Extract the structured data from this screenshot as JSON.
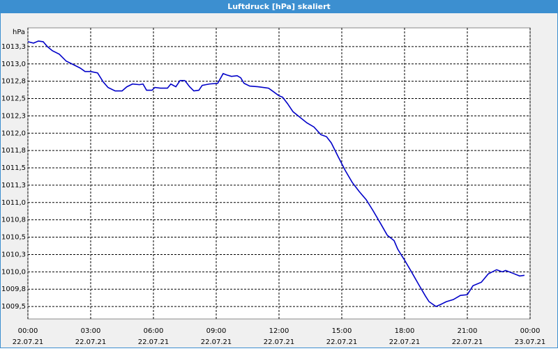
{
  "chart_data": {
    "type": "line",
    "title": "Luftdruck [hPa] skaliert",
    "ylabel": "hPa",
    "xlim": [
      0,
      24
    ],
    "ylim": [
      1009.32,
      1013.52
    ],
    "grid": true,
    "xticks": [
      {
        "value": 0,
        "label": "00:00 22.07.21"
      },
      {
        "value": 3,
        "label": "03:00 22.07.21"
      },
      {
        "value": 6,
        "label": "06:00 22.07.21"
      },
      {
        "value": 9,
        "label": "09:00 22.07.21"
      },
      {
        "value": 12,
        "label": "12:00 22.07.21"
      },
      {
        "value": 15,
        "label": "15:00 22.07.21"
      },
      {
        "value": 18,
        "label": "18:00 22.07.21"
      },
      {
        "value": 21,
        "label": "21:00 22.07.21"
      },
      {
        "value": 24,
        "label": "00:00 23.07.21"
      }
    ],
    "yticks": [
      {
        "value": 1009.5,
        "label": "1009,5"
      },
      {
        "value": 1009.75,
        "label": "1009,8"
      },
      {
        "value": 1010.0,
        "label": "1010,0"
      },
      {
        "value": 1010.25,
        "label": "1010,3"
      },
      {
        "value": 1010.5,
        "label": "1010,5"
      },
      {
        "value": 1010.75,
        "label": "1010,8"
      },
      {
        "value": 1011.0,
        "label": "1011,0"
      },
      {
        "value": 1011.25,
        "label": "1011,3"
      },
      {
        "value": 1011.5,
        "label": "1011,5"
      },
      {
        "value": 1011.75,
        "label": "1011,8"
      },
      {
        "value": 1012.0,
        "label": "1012,0"
      },
      {
        "value": 1012.25,
        "label": "1012,3"
      },
      {
        "value": 1012.5,
        "label": "1012,5"
      },
      {
        "value": 1012.75,
        "label": "1012,8"
      },
      {
        "value": 1013.0,
        "label": "1013,0"
      },
      {
        "value": 1013.25,
        "label": "1013,3"
      }
    ],
    "series": [
      {
        "color": "#0000c8",
        "x": [
          0.0,
          0.27,
          0.5,
          0.73,
          0.93,
          1.17,
          1.5,
          1.83,
          2.17,
          2.5,
          2.73,
          3.0,
          3.33,
          3.6,
          3.83,
          4.17,
          4.5,
          4.73,
          5.0,
          5.33,
          5.5,
          5.67,
          5.93,
          6.07,
          6.33,
          6.67,
          6.83,
          7.07,
          7.27,
          7.5,
          7.73,
          7.93,
          8.17,
          8.33,
          8.67,
          9.07,
          9.33,
          9.5,
          9.73,
          10.0,
          10.17,
          10.33,
          10.6,
          11.0,
          11.5,
          11.73,
          12.0,
          12.17,
          12.4,
          12.67,
          13.0,
          13.33,
          13.67,
          14.0,
          14.27,
          14.5,
          14.83,
          15.17,
          15.5,
          15.83,
          16.17,
          16.5,
          16.83,
          17.17,
          17.5,
          17.67,
          17.83,
          18.0,
          18.33,
          18.67,
          19.0,
          19.17,
          19.5,
          19.73,
          20.0,
          20.33,
          20.67,
          21.0,
          21.27,
          21.67,
          22.0,
          22.4,
          22.67,
          22.83,
          23.17,
          23.5,
          23.73
        ],
        "values": [
          1013.32,
          1013.3,
          1013.33,
          1013.32,
          1013.25,
          1013.19,
          1013.14,
          1013.04,
          1012.99,
          1012.94,
          1012.89,
          1012.89,
          1012.87,
          1012.74,
          1012.66,
          1012.61,
          1012.61,
          1012.67,
          1012.71,
          1012.7,
          1012.71,
          1012.62,
          1012.62,
          1012.66,
          1012.65,
          1012.65,
          1012.71,
          1012.67,
          1012.76,
          1012.76,
          1012.67,
          1012.61,
          1012.62,
          1012.69,
          1012.71,
          1012.72,
          1012.86,
          1012.84,
          1012.82,
          1012.83,
          1012.8,
          1012.72,
          1012.68,
          1012.67,
          1012.65,
          1012.6,
          1012.54,
          1012.52,
          1012.43,
          1012.31,
          1012.23,
          1012.15,
          1012.09,
          1011.98,
          1011.95,
          1011.86,
          1011.66,
          1011.46,
          1011.29,
          1011.16,
          1011.04,
          1010.88,
          1010.71,
          1010.53,
          1010.45,
          1010.33,
          1010.25,
          1010.17,
          1010.0,
          1009.82,
          1009.65,
          1009.57,
          1009.5,
          1009.53,
          1009.57,
          1009.6,
          1009.66,
          1009.67,
          1009.8,
          1009.85,
          1009.97,
          1010.03,
          1010.0,
          1010.02,
          1009.98,
          1009.94,
          1009.95
        ]
      }
    ]
  }
}
